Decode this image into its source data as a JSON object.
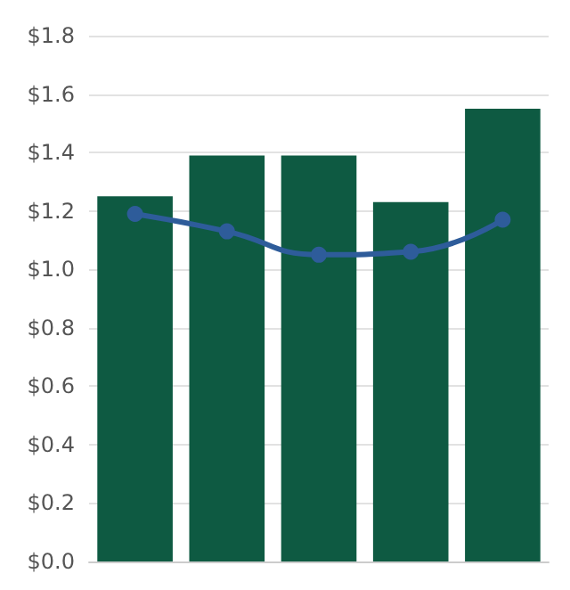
{
  "chart_data": {
    "type": "bar",
    "categories": [
      null,
      null,
      null,
      null,
      null
    ],
    "series": [
      {
        "color": "#0e5a42",
        "values": [
          1.25,
          1.39,
          1.39,
          1.23,
          1.55
        ]
      },
      {
        "type": "line",
        "color": "#2e5c9a",
        "values": [
          1.19,
          1.13,
          1.05,
          1.06,
          1.17
        ]
      }
    ],
    "ylim": [
      0,
      1.8
    ],
    "yticks": [
      {
        "value": 0,
        "label": "$0.0"
      },
      {
        "value": 0.2,
        "label": "$0.2"
      },
      {
        "value": 0.4,
        "label": "$0.4"
      },
      {
        "value": 0.6,
        "label": "$0.6"
      },
      {
        "value": 0.8,
        "label": "$0.8"
      },
      {
        "value": 1.0,
        "label": "$1.0"
      },
      {
        "value": 1.2,
        "label": "$1.2"
      },
      {
        "value": 1.4,
        "label": "$1.4"
      },
      {
        "value": 1.6,
        "label": "$1.6"
      },
      {
        "value": 1.8,
        "label": "$1.8"
      }
    ],
    "grid": "y",
    "marker": "circle",
    "line_style": "solid"
  }
}
